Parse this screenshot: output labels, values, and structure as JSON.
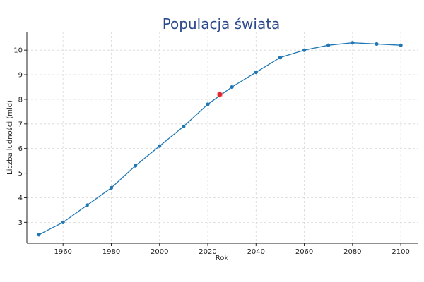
{
  "chart_data": {
    "type": "line",
    "title": "Populacja świata",
    "xlabel": "Rok",
    "ylabel": "Liczba ludności (mld)",
    "xlim": [
      1945,
      2107
    ],
    "ylim": [
      2.15,
      10.75
    ],
    "xticks": [
      1960,
      1980,
      2000,
      2020,
      2040,
      2060,
      2080,
      2100
    ],
    "yticks": [
      3,
      4,
      5,
      6,
      7,
      8,
      9,
      10
    ],
    "grid": true,
    "series": [
      {
        "color": "#1f77b4",
        "x": [
          1950,
          1960,
          1970,
          1980,
          1990,
          2000,
          2010,
          2020,
          2030,
          2040,
          2050,
          2060,
          2070,
          2080,
          2090,
          2100
        ],
        "y": [
          2.5,
          3.0,
          3.7,
          4.4,
          5.3,
          6.1,
          6.9,
          7.8,
          8.5,
          9.1,
          9.7,
          10.0,
          10.2,
          10.3,
          10.25,
          10.2
        ]
      }
    ],
    "highlight": {
      "x": 2025,
      "y": 8.2,
      "color": "#e3242b"
    }
  }
}
